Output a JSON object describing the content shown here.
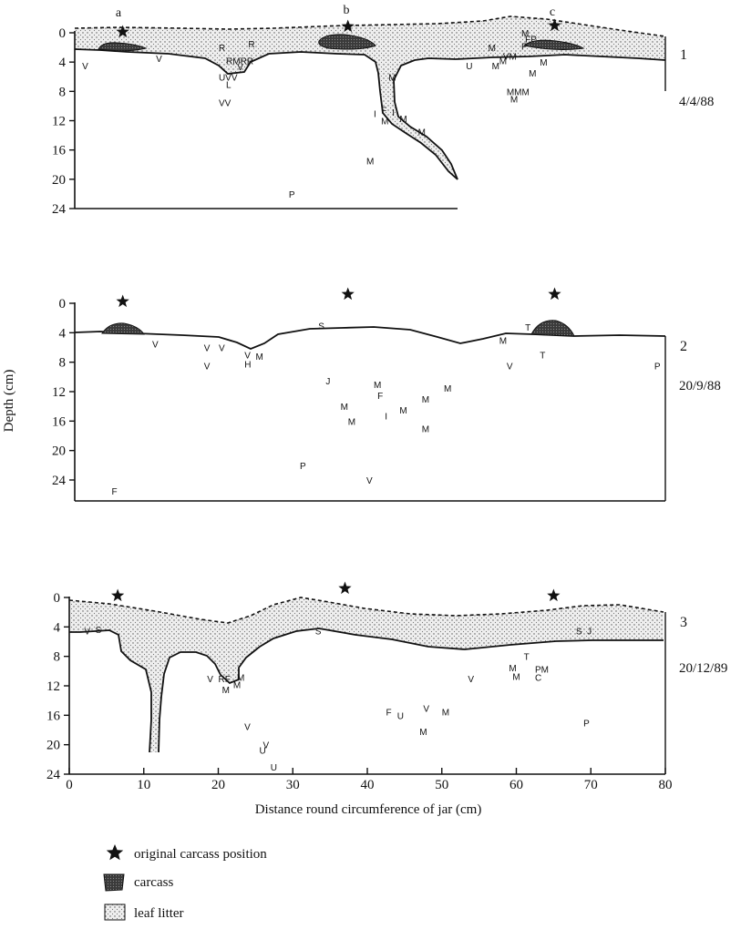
{
  "y_axis_label": "Depth (cm)",
  "x_axis_label": "Distance round circumference of jar (cm)",
  "depth_ticks": [
    0,
    4,
    8,
    12,
    16,
    20,
    24
  ],
  "distance_ticks": [
    0,
    10,
    20,
    30,
    40,
    50,
    60,
    70,
    80
  ],
  "markers": [
    "a",
    "b",
    "c"
  ],
  "legend": {
    "star": "original carcass position",
    "carcass": "carcass",
    "litter": "leaf litter"
  },
  "colors": {
    "ink": "#111111",
    "carcass": "#3a3a3a",
    "litter": "#ececec"
  },
  "panels": [
    {
      "id": "1",
      "date": "4/4/88",
      "stars": [
        6.5,
        37,
        65
      ],
      "labels": [
        {
          "t": "V",
          "x": 1,
          "d": 4.5
        },
        {
          "t": "V",
          "x": 11,
          "d": 3.5
        },
        {
          "t": "R",
          "x": 19.5,
          "d": 2
        },
        {
          "t": "R",
          "x": 23.5,
          "d": 1.5
        },
        {
          "t": "RMRR",
          "x": 20.5,
          "d": 3.8
        },
        {
          "t": "V",
          "x": 22,
          "d": 4.6
        },
        {
          "t": "UVV",
          "x": 19.5,
          "d": 6
        },
        {
          "t": "L",
          "x": 20.5,
          "d": 7
        },
        {
          "t": "VV",
          "x": 19.5,
          "d": 9.5
        },
        {
          "t": "M",
          "x": 42.5,
          "d": 6
        },
        {
          "t": "I",
          "x": 40.5,
          "d": 11
        },
        {
          "t": "F",
          "x": 41.5,
          "d": 10.5
        },
        {
          "t": "I",
          "x": 43,
          "d": 10.8
        },
        {
          "t": "M",
          "x": 41.5,
          "d": 12
        },
        {
          "t": "M",
          "x": 44,
          "d": 11.7
        },
        {
          "t": "M",
          "x": 46.5,
          "d": 13.5
        },
        {
          "t": "M",
          "x": 39.5,
          "d": 17.5
        },
        {
          "t": "P",
          "x": 29,
          "d": 22
        },
        {
          "t": "U",
          "x": 53,
          "d": 4.5
        },
        {
          "t": "M",
          "x": 56,
          "d": 2
        },
        {
          "t": "M",
          "x": 60.5,
          "d": 0
        },
        {
          "t": "FP",
          "x": 61,
          "d": 0.8
        },
        {
          "t": "P",
          "x": 60.5,
          "d": 1.8
        },
        {
          "t": "VM",
          "x": 58,
          "d": 3.2
        },
        {
          "t": "M",
          "x": 57.5,
          "d": 3.8
        },
        {
          "t": "M",
          "x": 56.5,
          "d": 4.5
        },
        {
          "t": "M",
          "x": 63,
          "d": 4
        },
        {
          "t": "M",
          "x": 61.5,
          "d": 5.5
        },
        {
          "t": "MMM",
          "x": 58.5,
          "d": 8
        },
        {
          "t": "M",
          "x": 59,
          "d": 9
        }
      ]
    },
    {
      "id": "2",
      "date": "20/9/88",
      "stars": [
        6.5,
        37,
        65
      ],
      "labels": [
        {
          "t": "V",
          "x": 10.5,
          "d": 5.5
        },
        {
          "t": "V",
          "x": 17.5,
          "d": 6
        },
        {
          "t": "V",
          "x": 19.5,
          "d": 6
        },
        {
          "t": "V",
          "x": 23,
          "d": 7
        },
        {
          "t": "H",
          "x": 23,
          "d": 8.2
        },
        {
          "t": "M",
          "x": 24.5,
          "d": 7.2
        },
        {
          "t": "V",
          "x": 17.5,
          "d": 8.5
        },
        {
          "t": "S",
          "x": 33,
          "d": 3
        },
        {
          "t": "J",
          "x": 34,
          "d": 10.5
        },
        {
          "t": "M",
          "x": 40.5,
          "d": 11
        },
        {
          "t": "F",
          "x": 41,
          "d": 12.5
        },
        {
          "t": "M",
          "x": 36,
          "d": 14
        },
        {
          "t": "M",
          "x": 37,
          "d": 16
        },
        {
          "t": "I",
          "x": 42,
          "d": 15.3
        },
        {
          "t": "M",
          "x": 44,
          "d": 14.5
        },
        {
          "t": "M",
          "x": 47,
          "d": 13
        },
        {
          "t": "M",
          "x": 50,
          "d": 11.5
        },
        {
          "t": "M",
          "x": 47,
          "d": 17
        },
        {
          "t": "P",
          "x": 30.5,
          "d": 22
        },
        {
          "t": "V",
          "x": 39.5,
          "d": 24
        },
        {
          "t": "F",
          "x": 5,
          "d": 25.5
        },
        {
          "t": "M",
          "x": 57.5,
          "d": 5
        },
        {
          "t": "V",
          "x": 58.5,
          "d": 8.5
        },
        {
          "t": "T",
          "x": 61,
          "d": 3.2
        },
        {
          "t": "T",
          "x": 63,
          "d": 7
        },
        {
          "t": "P",
          "x": 78.5,
          "d": 8.5
        }
      ]
    },
    {
      "id": "3",
      "date": "20/12/89",
      "stars": [
        6.5,
        37,
        65
      ],
      "labels": [
        {
          "t": "V",
          "x": 2,
          "d": 4.5
        },
        {
          "t": "S",
          "x": 3.5,
          "d": 4.3
        },
        {
          "t": "S",
          "x": 33,
          "d": 4.5
        },
        {
          "t": "V",
          "x": 18.5,
          "d": 11
        },
        {
          "t": "RF",
          "x": 20,
          "d": 11
        },
        {
          "t": "M",
          "x": 22.5,
          "d": 10.8
        },
        {
          "t": "M",
          "x": 20.5,
          "d": 12.5
        },
        {
          "t": "M",
          "x": 22,
          "d": 11.8
        },
        {
          "t": "V",
          "x": 23.5,
          "d": 17.5
        },
        {
          "t": "V",
          "x": 26,
          "d": 20
        },
        {
          "t": "U",
          "x": 25.5,
          "d": 20.7
        },
        {
          "t": "U",
          "x": 27,
          "d": 23
        },
        {
          "t": "F",
          "x": 42.5,
          "d": 15.5
        },
        {
          "t": "U",
          "x": 44,
          "d": 16
        },
        {
          "t": "V",
          "x": 47.5,
          "d": 15
        },
        {
          "t": "M",
          "x": 50,
          "d": 15.5
        },
        {
          "t": "M",
          "x": 47,
          "d": 18.2
        },
        {
          "t": "V",
          "x": 53.5,
          "d": 11
        },
        {
          "t": "T",
          "x": 61,
          "d": 8
        },
        {
          "t": "M",
          "x": 59,
          "d": 9.5
        },
        {
          "t": "M",
          "x": 59.5,
          "d": 10.7
        },
        {
          "t": "PM",
          "x": 62.5,
          "d": 9.7
        },
        {
          "t": "C",
          "x": 62.5,
          "d": 10.8
        },
        {
          "t": "S",
          "x": 68,
          "d": 4.5
        },
        {
          "t": "J",
          "x": 69.5,
          "d": 4.5
        },
        {
          "t": "P",
          "x": 69,
          "d": 17
        }
      ]
    }
  ]
}
